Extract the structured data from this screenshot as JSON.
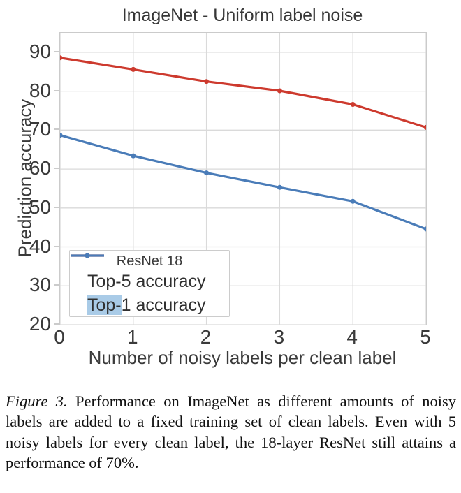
{
  "figure": {
    "caption_label": "Figure 3.",
    "caption_text": "Performance on ImageNet as different amounts of noisy labels are added to a fixed training set of clean labels. Even with 5 noisy labels for every clean label, the 18-layer ResNet still attains a performance of 70%."
  },
  "chart_data": {
    "type": "line",
    "title": "ImageNet - Uniform label noise",
    "xlabel": "Number of noisy labels per clean label",
    "ylabel": "Prediction accuracy",
    "x": [
      0,
      1,
      2,
      3,
      4,
      5
    ],
    "xlim": [
      0,
      5
    ],
    "ylim": [
      20,
      95
    ],
    "xticks": [
      0,
      1,
      2,
      3,
      4,
      5
    ],
    "yticks": [
      20,
      30,
      40,
      50,
      60,
      70,
      80,
      90
    ],
    "grid": true,
    "legend": {
      "title": "ResNet 18",
      "position": "lower-left"
    },
    "colors": {
      "grid": "#dadada",
      "axis_border": "#cbcbcb",
      "selection_highlight": "#a9cbe7"
    },
    "series": [
      {
        "id": "top5",
        "name": "Top-5 accuracy",
        "color": "#cd3a2e",
        "marker": "circle",
        "values": [
          88.6,
          85.6,
          82.5,
          80.1,
          76.6,
          70.7
        ],
        "label_parts": [
          {
            "text": "Top-5 accuracy",
            "highlight": false
          }
        ]
      },
      {
        "id": "top1",
        "name": "Top-1 accuracy",
        "color": "#4a7cb8",
        "marker": "circle",
        "values": [
          68.7,
          63.4,
          59.0,
          55.3,
          51.7,
          44.6
        ],
        "label_parts": [
          {
            "text": "Top-",
            "highlight": true
          },
          {
            "text": "1 accuracy",
            "highlight": false
          }
        ]
      }
    ]
  }
}
